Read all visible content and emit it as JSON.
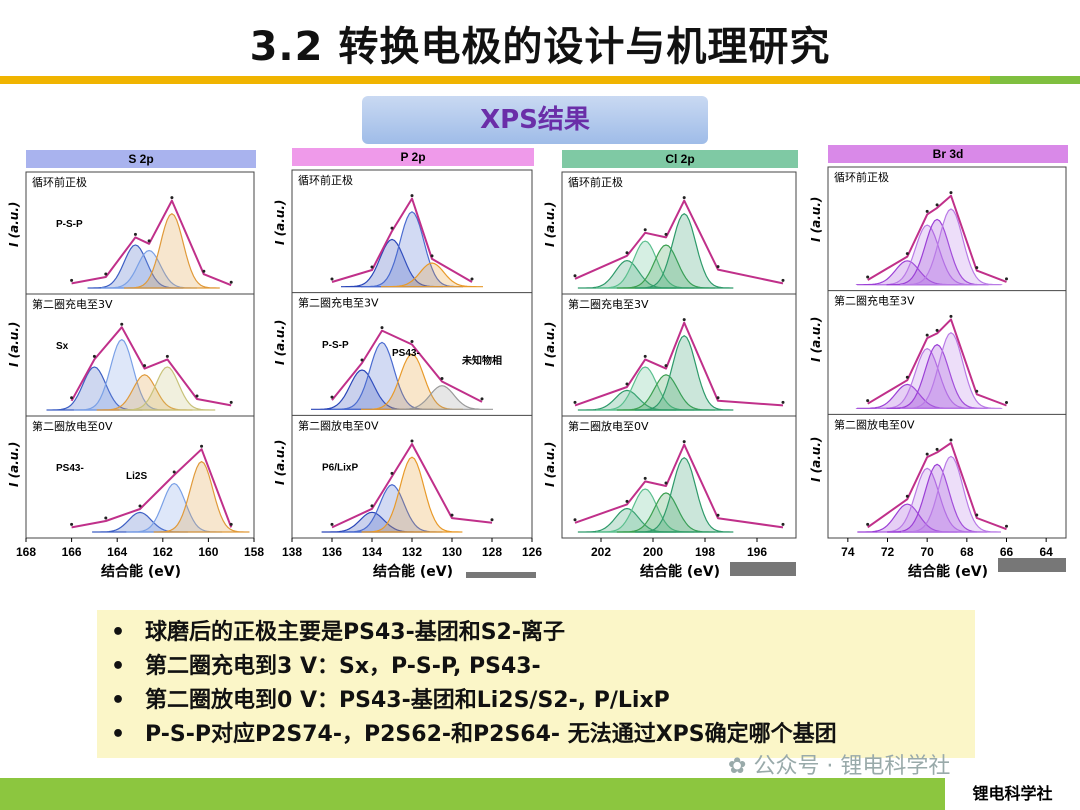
{
  "header": {
    "title": "3.2 转换电极的设计与机理研究",
    "section_label": "XPS结果"
  },
  "panels": [
    {
      "tab": "S 2p",
      "tab_color": "#a9b3ee",
      "ticks": [
        "168",
        "166",
        "164",
        "162",
        "160",
        "158"
      ],
      "rows": [
        {
          "label": "循环前正极",
          "annotations": [
            "P-S-P"
          ]
        },
        {
          "label": "第二圈充电至3V",
          "annotations": [
            "Sx"
          ]
        },
        {
          "label": "第二圈放电至0V",
          "annotations": [
            "PS43-",
            "Li2S"
          ]
        }
      ]
    },
    {
      "tab": "P 2p",
      "tab_color": "#ef9aea",
      "ticks": [
        "138",
        "136",
        "134",
        "132",
        "130",
        "128",
        "126"
      ],
      "rows": [
        {
          "label": "循环前正极",
          "annotations": []
        },
        {
          "label": "第二圈充电至3V",
          "annotations": [
            "P-S-P",
            "PS43-",
            "未知物相"
          ]
        },
        {
          "label": "第二圈放电至0V",
          "annotations": [
            "P6/LixP"
          ]
        }
      ]
    },
    {
      "tab": "Cl 2p",
      "tab_color": "#7fc9a4",
      "ticks": [
        "202",
        "200",
        "198",
        "196"
      ],
      "rows": [
        {
          "label": "循环前正极",
          "annotations": []
        },
        {
          "label": "第二圈充电至3V",
          "annotations": []
        },
        {
          "label": "第二圈放电至0V",
          "annotations": []
        }
      ]
    },
    {
      "tab": "Br 3d",
      "tab_color": "#d989e8",
      "ticks": [
        "74",
        "72",
        "70",
        "68",
        "66",
        "64"
      ],
      "rows": [
        {
          "label": "循环前正极",
          "annotations": []
        },
        {
          "label": "第二圈充电至3V",
          "annotations": []
        },
        {
          "label": "第二圈放电至0V",
          "annotations": []
        }
      ]
    }
  ],
  "axes": {
    "ylabel": "I (a.u.)",
    "xlabel": "结合能 (eV)"
  },
  "summary": [
    "球磨后的正极主要是PS43-基团和S2-离子",
    "第二圈充电到3 V：Sx，P-S-P, PS43-",
    "第二圈放电到0 V：PS43-基团和Li2S/S2-, P/LixP",
    "P-S-P对应P2S74-，P2S62-和P2S64- 无法通过XPS确定哪个基团"
  ],
  "watermark": "公众号 · 锂电科学社",
  "footer": {
    "brand": "锂电科学社"
  },
  "colors": {
    "accent_bar": "#f0b400",
    "footer_green": "#8cc63f",
    "fit_line": "#c0308a",
    "highlight_red": "#d21c1c"
  },
  "chart_data": [
    {
      "type": "line",
      "title": "S 2p",
      "xlabel": "结合能 (eV)",
      "ylabel": "I (a.u.)",
      "xlim": [
        168,
        158
      ],
      "grid": false,
      "series": [
        {
          "x": [
            166,
            164.5,
            163.2,
            162.6,
            161.6,
            160.2,
            159
          ],
          "values": [
            0.05,
            0.12,
            0.55,
            0.48,
            0.95,
            0.15,
            0.03
          ]
        },
        {
          "x": [
            166,
            165,
            163.8,
            162.8,
            161.8,
            160.5,
            159
          ],
          "values": [
            0.1,
            0.55,
            0.9,
            0.45,
            0.55,
            0.12,
            0.05
          ]
        },
        {
          "x": [
            166,
            164.5,
            163,
            161.5,
            160.3,
            159
          ],
          "values": [
            0.05,
            0.12,
            0.25,
            0.62,
            0.9,
            0.05
          ]
        }
      ]
    },
    {
      "type": "line",
      "title": "P 2p",
      "xlabel": "结合能 (eV)",
      "ylabel": "I (a.u.)",
      "xlim": [
        138,
        126
      ],
      "grid": false,
      "series": [
        {
          "x": [
            136,
            134,
            133,
            132,
            131,
            129
          ],
          "values": [
            0.05,
            0.18,
            0.6,
            0.95,
            0.3,
            0.05
          ]
        },
        {
          "x": [
            136,
            134.5,
            133.5,
            132,
            130.5,
            128.5
          ],
          "values": [
            0.1,
            0.5,
            0.85,
            0.7,
            0.3,
            0.08
          ]
        },
        {
          "x": [
            136,
            134,
            133,
            132,
            130,
            128
          ],
          "values": [
            0.05,
            0.25,
            0.6,
            0.95,
            0.15,
            0.1
          ]
        }
      ]
    },
    {
      "type": "line",
      "title": "Cl 2p",
      "xlabel": "结合能 (eV)",
      "ylabel": "I (a.u.)",
      "xlim": [
        203.5,
        194.5
      ],
      "grid": false,
      "series": [
        {
          "x": [
            203,
            201,
            200.3,
            199.5,
            198.8,
            197.5,
            195
          ],
          "values": [
            0.1,
            0.35,
            0.6,
            0.55,
            0.95,
            0.2,
            0.05
          ]
        },
        {
          "x": [
            203,
            201,
            200.3,
            199.5,
            198.8,
            197.5,
            195
          ],
          "values": [
            0.05,
            0.25,
            0.55,
            0.45,
            0.95,
            0.1,
            0.05
          ]
        },
        {
          "x": [
            203,
            201,
            200.3,
            199.5,
            198.8,
            197.5,
            195
          ],
          "values": [
            0.1,
            0.3,
            0.55,
            0.5,
            0.95,
            0.15,
            0.05
          ]
        }
      ]
    },
    {
      "type": "line",
      "title": "Br 3d",
      "xlabel": "结合能 (eV)",
      "ylabel": "I (a.u.)",
      "xlim": [
        75,
        63
      ],
      "grid": false,
      "series": [
        {
          "x": [
            73,
            71,
            70,
            69.5,
            68.8,
            67.5,
            66
          ],
          "values": [
            0.05,
            0.3,
            0.75,
            0.82,
            0.95,
            0.15,
            0.03
          ]
        },
        {
          "x": [
            73,
            71,
            70,
            69.5,
            68.8,
            67.5,
            66
          ],
          "values": [
            0.05,
            0.3,
            0.75,
            0.8,
            0.95,
            0.15,
            0.03
          ]
        },
        {
          "x": [
            73,
            71,
            70,
            69.5,
            68.8,
            67.5,
            66
          ],
          "values": [
            0.05,
            0.35,
            0.8,
            0.85,
            0.95,
            0.15,
            0.03
          ]
        }
      ]
    }
  ]
}
